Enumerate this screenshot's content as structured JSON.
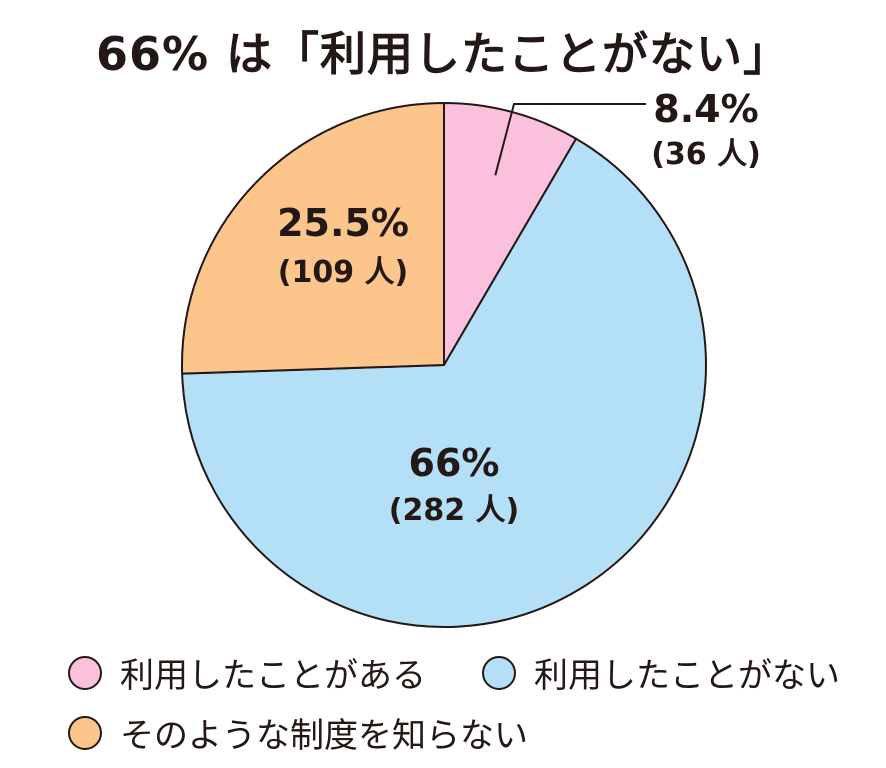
{
  "title": "66% は「利用したことがない」",
  "chart_data": {
    "type": "pie",
    "title": "66% は「利用したことがない」",
    "start": "12 o'clock, clockwise",
    "slices": [
      {
        "label": "利用したことがある",
        "value": 8.4,
        "pct_label": "8.4%",
        "count_label": "(36 人)",
        "color": "#fbc0dc"
      },
      {
        "label": "利用したことがない",
        "value": 66,
        "pct_label": "66%",
        "count_label": "(282 人)",
        "color": "#b3e0f7"
      },
      {
        "label": "そのような制度を知らない",
        "value": 25.5,
        "pct_label": "25.5%",
        "count_label": "(109 人)",
        "color": "#fbc58c"
      }
    ],
    "legend": [
      "利用したことがある",
      "利用したことがない",
      "そのような制度を知らない"
    ],
    "legend_placement": "bottom"
  },
  "colors": {
    "outline": "#231815"
  }
}
